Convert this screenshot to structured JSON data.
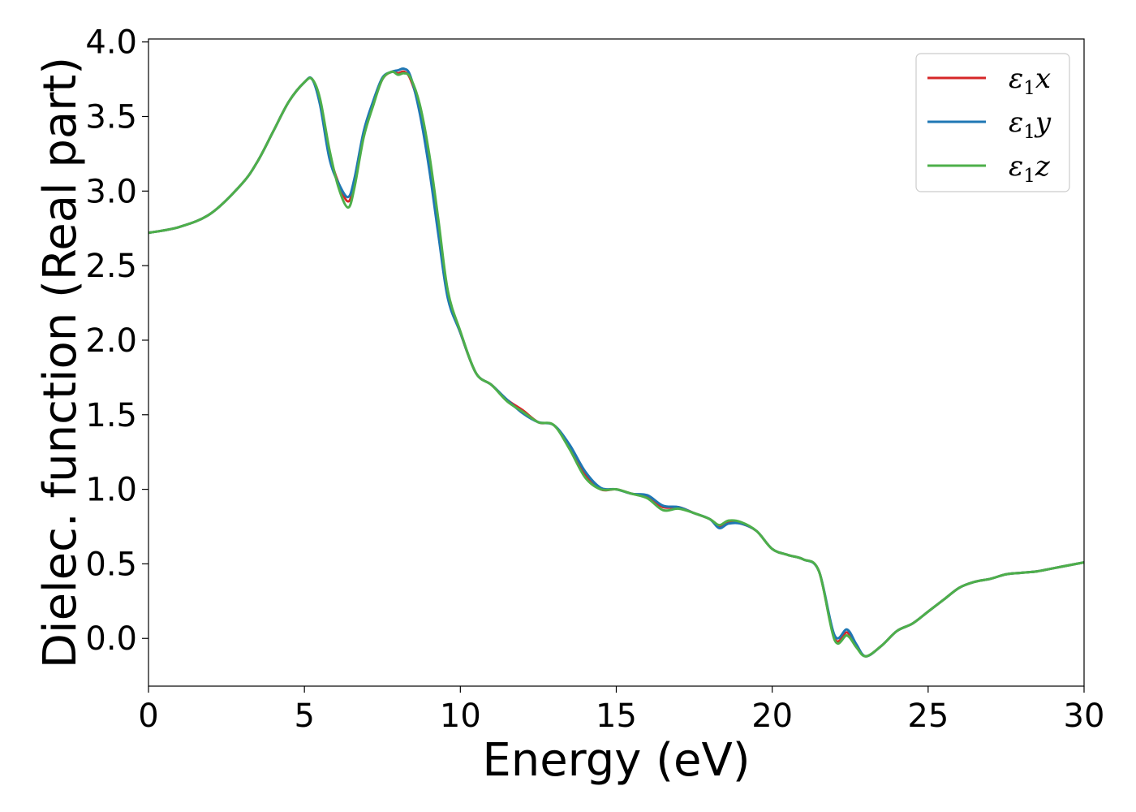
{
  "chart_data": {
    "type": "line",
    "xlabel": "Energy (eV)",
    "ylabel": "Dielec. function (Real part)",
    "xlim": [
      0,
      30
    ],
    "ylim": [
      -0.32,
      4.02
    ],
    "x_ticks": [
      0,
      5,
      10,
      15,
      20,
      25,
      30
    ],
    "x_tick_labels": [
      "0",
      "5",
      "10",
      "15",
      "20",
      "25",
      "30"
    ],
    "y_ticks": [
      0.0,
      0.5,
      1.0,
      1.5,
      2.0,
      2.5,
      3.0,
      3.5,
      4.0
    ],
    "y_tick_labels": [
      "0.0",
      "0.5",
      "1.0",
      "1.5",
      "2.0",
      "2.5",
      "3.0",
      "3.5",
      "4.0"
    ],
    "grid": false,
    "legend_position": "top-right",
    "series": [
      {
        "name": "ε1x",
        "legend_main": "ε",
        "legend_sub": "1",
        "legend_var": "x",
        "color": "#d62728",
        "x": [
          0,
          1,
          2,
          3,
          3.5,
          4,
          4.5,
          5,
          5.25,
          5.5,
          5.8,
          6.1,
          6.4,
          6.6,
          6.9,
          7.2,
          7.5,
          7.8,
          8.0,
          8.2,
          8.4,
          8.7,
          9.0,
          9.3,
          9.6,
          10.0,
          10.5,
          11.0,
          11.5,
          12.0,
          12.5,
          13.0,
          13.5,
          14.0,
          14.5,
          15.0,
          15.5,
          16.0,
          16.5,
          17.0,
          17.5,
          18.0,
          18.3,
          18.6,
          19.0,
          19.5,
          20.0,
          20.5,
          21.0,
          21.5,
          22.0,
          22.4,
          22.7,
          23.0,
          23.5,
          24.0,
          24.5,
          25.0,
          25.5,
          26.0,
          26.5,
          27.0,
          27.5,
          28.0,
          28.5,
          29.0,
          29.5,
          30.0
        ],
        "y": [
          2.72,
          2.76,
          2.85,
          3.05,
          3.2,
          3.4,
          3.6,
          3.73,
          3.75,
          3.6,
          3.25,
          3.05,
          2.93,
          3.05,
          3.38,
          3.58,
          3.75,
          3.8,
          3.79,
          3.8,
          3.75,
          3.55,
          3.2,
          2.75,
          2.3,
          2.05,
          1.78,
          1.7,
          1.6,
          1.53,
          1.45,
          1.43,
          1.28,
          1.1,
          1.0,
          1.0,
          0.97,
          0.95,
          0.88,
          0.88,
          0.84,
          0.8,
          0.75,
          0.78,
          0.77,
          0.72,
          0.6,
          0.56,
          0.53,
          0.45,
          0.0,
          0.04,
          -0.05,
          -0.12,
          -0.05,
          0.05,
          0.1,
          0.18,
          0.26,
          0.34,
          0.38,
          0.4,
          0.43,
          0.44,
          0.45,
          0.47,
          0.49,
          0.51
        ]
      },
      {
        "name": "ε1y",
        "legend_main": "ε",
        "legend_sub": "1",
        "legend_var": "y",
        "color": "#1f77b4",
        "x": [
          0,
          1,
          2,
          3,
          3.5,
          4,
          4.5,
          5,
          5.25,
          5.5,
          5.8,
          6.1,
          6.4,
          6.6,
          6.9,
          7.2,
          7.5,
          7.8,
          8.0,
          8.2,
          8.4,
          8.7,
          9.0,
          9.3,
          9.6,
          10.0,
          10.5,
          11.0,
          11.5,
          12.0,
          12.5,
          13.0,
          13.5,
          14.0,
          14.5,
          15.0,
          15.5,
          16.0,
          16.5,
          17.0,
          17.5,
          18.0,
          18.3,
          18.6,
          19.0,
          19.5,
          20.0,
          20.5,
          21.0,
          21.5,
          22.0,
          22.4,
          22.7,
          23.0,
          23.5,
          24.0,
          24.5,
          25.0,
          25.5,
          26.0,
          26.5,
          27.0,
          27.5,
          28.0,
          28.5,
          29.0,
          29.5,
          30.0
        ],
        "y": [
          2.72,
          2.76,
          2.85,
          3.05,
          3.2,
          3.4,
          3.6,
          3.73,
          3.75,
          3.58,
          3.22,
          3.05,
          2.96,
          3.08,
          3.4,
          3.6,
          3.76,
          3.8,
          3.81,
          3.82,
          3.77,
          3.52,
          3.15,
          2.7,
          2.28,
          2.05,
          1.78,
          1.7,
          1.6,
          1.51,
          1.45,
          1.43,
          1.3,
          1.12,
          1.01,
          1.0,
          0.97,
          0.96,
          0.89,
          0.88,
          0.84,
          0.8,
          0.74,
          0.77,
          0.77,
          0.72,
          0.6,
          0.56,
          0.53,
          0.45,
          0.02,
          0.06,
          -0.04,
          -0.12,
          -0.05,
          0.05,
          0.1,
          0.18,
          0.26,
          0.34,
          0.38,
          0.4,
          0.43,
          0.44,
          0.45,
          0.47,
          0.49,
          0.51
        ]
      },
      {
        "name": "ε1z",
        "legend_main": "ε",
        "legend_sub": "1",
        "legend_var": "z",
        "color": "#4daf4a",
        "x": [
          0,
          1,
          2,
          3,
          3.5,
          4,
          4.5,
          5,
          5.25,
          5.5,
          5.8,
          6.1,
          6.4,
          6.6,
          6.9,
          7.2,
          7.5,
          7.8,
          8.0,
          8.2,
          8.4,
          8.7,
          9.0,
          9.3,
          9.6,
          10.0,
          10.5,
          11.0,
          11.5,
          12.0,
          12.5,
          13.0,
          13.5,
          14.0,
          14.5,
          15.0,
          15.5,
          16.0,
          16.5,
          17.0,
          17.5,
          18.0,
          18.3,
          18.6,
          19.0,
          19.5,
          20.0,
          20.5,
          21.0,
          21.5,
          22.0,
          22.4,
          22.7,
          23.0,
          23.5,
          24.0,
          24.5,
          25.0,
          25.5,
          26.0,
          26.5,
          27.0,
          27.5,
          28.0,
          28.5,
          29.0,
          29.5,
          30.0
        ],
        "y": [
          2.72,
          2.76,
          2.85,
          3.05,
          3.2,
          3.4,
          3.6,
          3.73,
          3.75,
          3.62,
          3.28,
          3.02,
          2.89,
          3.02,
          3.36,
          3.57,
          3.75,
          3.8,
          3.78,
          3.79,
          3.76,
          3.58,
          3.25,
          2.8,
          2.33,
          2.06,
          1.78,
          1.7,
          1.59,
          1.52,
          1.45,
          1.43,
          1.27,
          1.08,
          1.0,
          1.0,
          0.97,
          0.94,
          0.86,
          0.87,
          0.84,
          0.8,
          0.76,
          0.79,
          0.78,
          0.72,
          0.6,
          0.56,
          0.53,
          0.45,
          -0.01,
          0.02,
          -0.06,
          -0.12,
          -0.05,
          0.05,
          0.1,
          0.18,
          0.26,
          0.34,
          0.38,
          0.4,
          0.43,
          0.44,
          0.45,
          0.47,
          0.49,
          0.51
        ]
      }
    ]
  }
}
